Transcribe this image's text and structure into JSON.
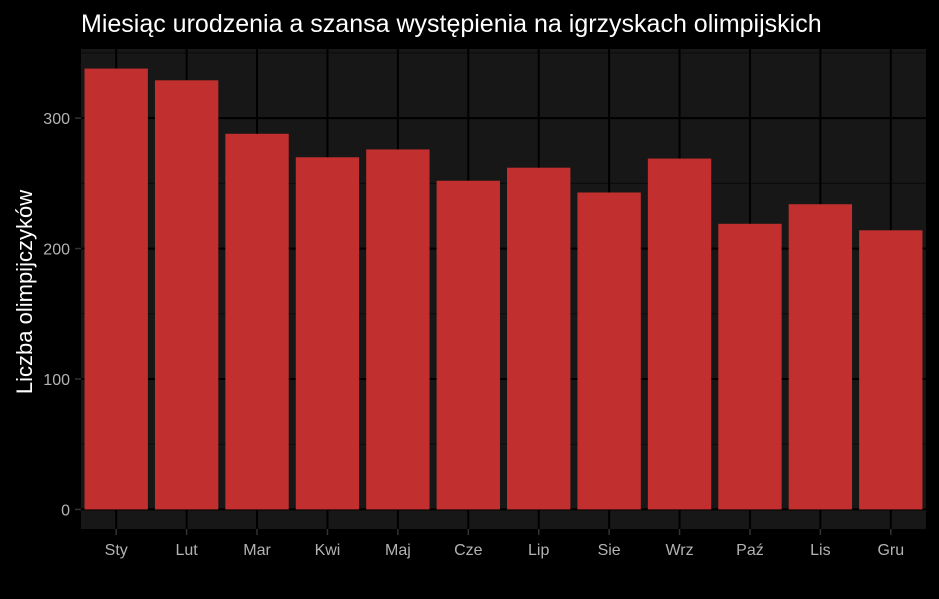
{
  "chart_data": {
    "type": "bar",
    "title": "Miesiąc urodzenia a szansa występienia na igrzyskach olimpijskich",
    "xlabel": "",
    "ylabel": "Liczba olimpijczyków",
    "categories": [
      "Sty",
      "Lut",
      "Mar",
      "Kwi",
      "Maj",
      "Cze",
      "Lip",
      "Sie",
      "Wrz",
      "Paź",
      "Lis",
      "Gru"
    ],
    "values": [
      338,
      329,
      288,
      270,
      276,
      252,
      262,
      243,
      269,
      219,
      234,
      214
    ],
    "ylim": [
      -15,
      353
    ],
    "yticks": [
      0,
      100,
      200,
      300
    ],
    "grid": true,
    "legend": "none",
    "colors": {
      "background": "#000000",
      "panel": "#171717",
      "grid_major": "#000000",
      "grid_minor": "#0b0b0b",
      "bar": "#c7312f",
      "title": "#ffffff",
      "tick_text": "#b3b3b3"
    }
  }
}
